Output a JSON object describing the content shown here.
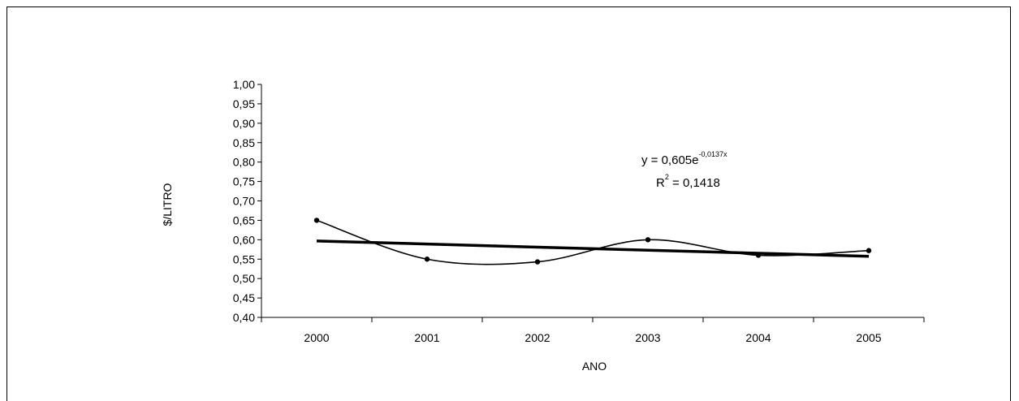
{
  "chart_data": {
    "type": "line",
    "title": "",
    "xlabel": "ANO",
    "ylabel": "$/LITRO",
    "categories": [
      "2000",
      "2001",
      "2002",
      "2003",
      "2004",
      "2005"
    ],
    "series": [
      {
        "values": [
          0.65,
          0.55,
          0.543,
          0.6,
          0.56,
          0.572
        ],
        "style": "smoothed-line-with-markers"
      }
    ],
    "trendline": {
      "type": "exponential",
      "coefficient": 0.605,
      "exponent": -0.0137,
      "equation_base": "y = 0,605e",
      "equation_exponent": "-0,0137x",
      "r2_base": "R",
      "r2_exponent": "2",
      "r2_value": " = 0,1418"
    },
    "ylim": [
      0.4,
      1.0
    ],
    "ystep": 0.05,
    "y_tick_labels": [
      "0,40",
      "0,45",
      "0,50",
      "0,55",
      "0,60",
      "0,65",
      "0,70",
      "0,75",
      "0,80",
      "0,85",
      "0,90",
      "0,95",
      "1,00"
    ],
    "grid": false,
    "legend": "none",
    "colors": {
      "series": "#000000",
      "trendline": "#000000"
    }
  }
}
